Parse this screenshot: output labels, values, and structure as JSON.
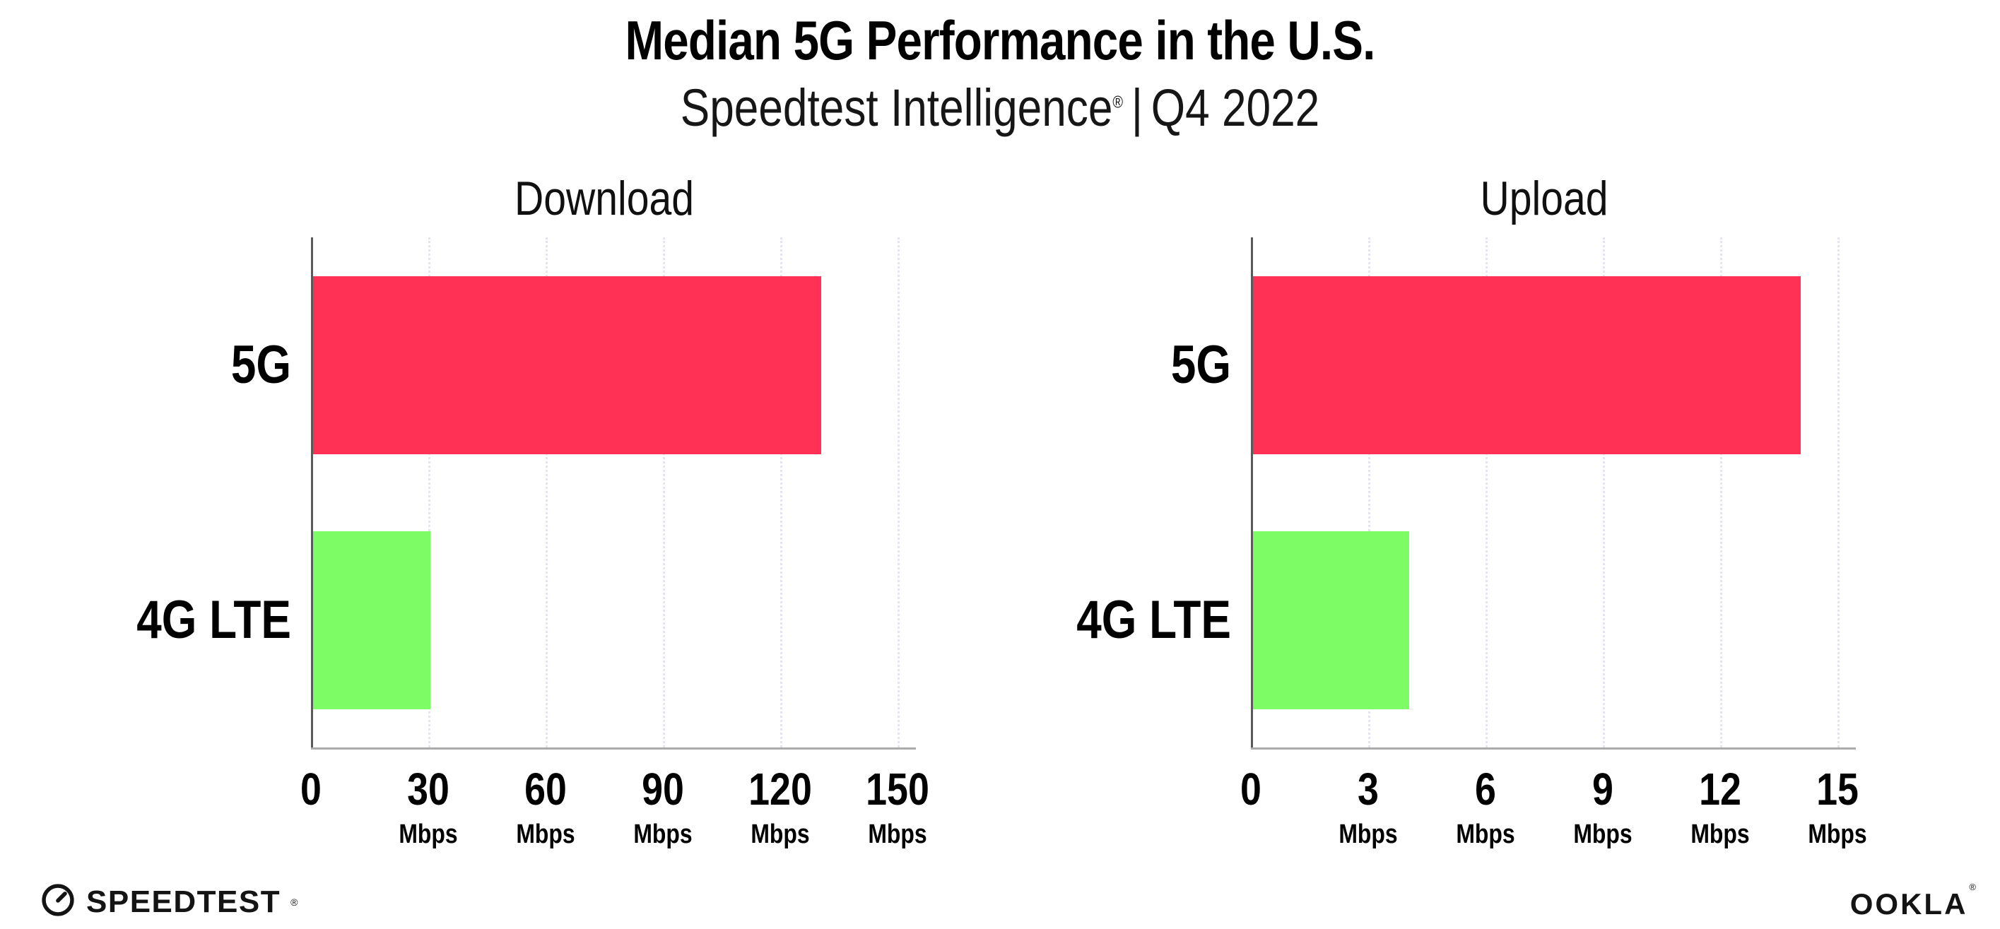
{
  "header": {
    "title": "Median 5G Performance in the U.S.",
    "subtitle_brand": "Speedtest Intelligence",
    "subtitle_reg": "®",
    "subtitle_sep": "|",
    "subtitle_period": "Q4 2022"
  },
  "colors": {
    "bar_5g": "#ff3155",
    "bar_4g_lte": "#7efc66",
    "gridline": "#e4e3ee",
    "x_axis": "#ababab",
    "y_axis": "#5a5a5a",
    "text": "#000000"
  },
  "chart_data": [
    {
      "type": "bar",
      "orientation": "horizontal",
      "title": "Download",
      "categories": [
        "5G",
        "4G LTE"
      ],
      "values": [
        130,
        30
      ],
      "unit": "Mbps",
      "xlim": [
        0,
        150
      ],
      "xticks": [
        0,
        30,
        60,
        90,
        120,
        150
      ],
      "bar_colors": [
        "#ff3155",
        "#7efc66"
      ],
      "grid": "vertical-dotted",
      "legend": "none"
    },
    {
      "type": "bar",
      "orientation": "horizontal",
      "title": "Upload",
      "categories": [
        "5G",
        "4G LTE"
      ],
      "values": [
        14,
        4
      ],
      "unit": "Mbps",
      "xlim": [
        0,
        15
      ],
      "xticks": [
        0,
        3,
        6,
        9,
        12,
        15
      ],
      "bar_colors": [
        "#ff3155",
        "#7efc66"
      ],
      "grid": "vertical-dotted",
      "legend": "none"
    }
  ],
  "footer": {
    "speedtest_label": "SPEEDTEST",
    "speedtest_reg": "®",
    "ookla_label": "OOKLA",
    "ookla_reg": "®"
  }
}
